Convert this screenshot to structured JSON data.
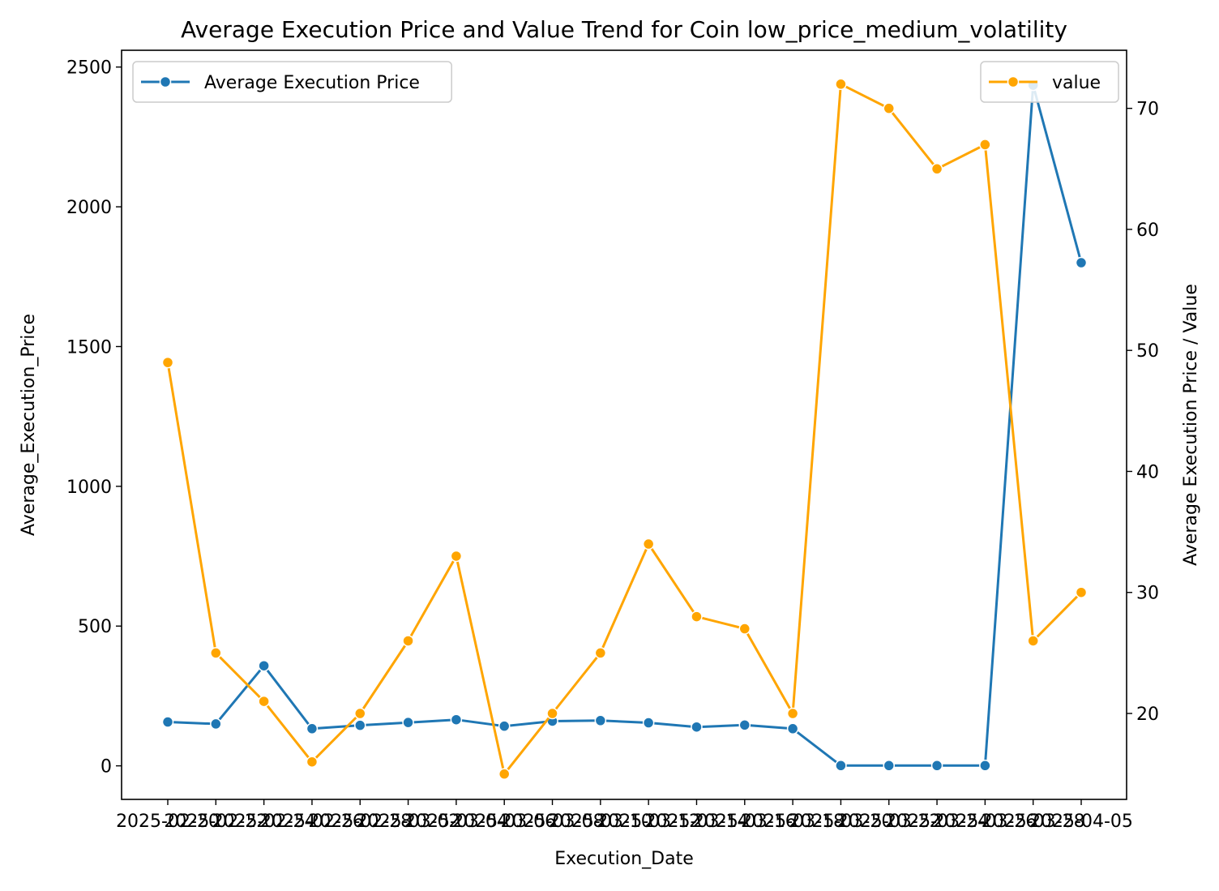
{
  "chart_data": {
    "type": "line",
    "title": "Average Execution Price and Value Trend for Coin low_price_medium_volatility",
    "xlabel": "Execution_Date",
    "ylabel_left": "Average_Execution_Price",
    "ylabel_right": "Average Execution Price / Value",
    "grid": false,
    "categories": [
      "2025-02-20",
      "2025-02-22",
      "2025-02-24",
      "2025-02-26",
      "2025-02-28",
      "2025-03-02",
      "2025-03-04",
      "2025-03-06",
      "2025-03-08",
      "2025-03-10",
      "2025-03-12",
      "2025-03-14",
      "2025-03-16",
      "2025-03-18",
      "2025-03-20",
      "2025-03-22",
      "2025-03-24",
      "2025-03-26",
      "2025-03-28",
      "2025-04-05"
    ],
    "ylim_left": [
      -120,
      2560
    ],
    "ylim_right": [
      12.9,
      74.8
    ],
    "yticks_left": [
      0,
      500,
      1000,
      1500,
      2000,
      2500
    ],
    "yticks_right": [
      20,
      30,
      40,
      50,
      60,
      70
    ],
    "series": [
      {
        "name": "Average Execution Price",
        "axis": "left",
        "color": "#1f77b4",
        "legend_position": "upper-left",
        "values": [
          157,
          150,
          358,
          133,
          145,
          155,
          165,
          142,
          160,
          162,
          154,
          139,
          146,
          133,
          1,
          1,
          1,
          1,
          2435,
          1800
        ]
      },
      {
        "name": "value",
        "axis": "right",
        "color": "#ffa500",
        "legend_position": "upper-right",
        "values": [
          49,
          25,
          21,
          16,
          20,
          26,
          33,
          15,
          20,
          25,
          34,
          28,
          27,
          20,
          72,
          70,
          65,
          67,
          26,
          30
        ]
      }
    ]
  }
}
